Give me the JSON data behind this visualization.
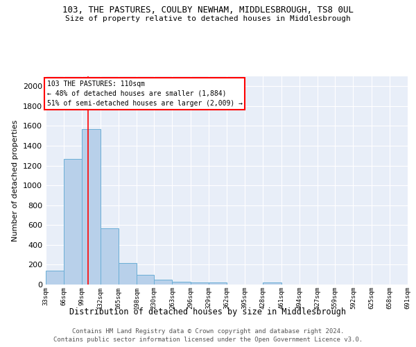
{
  "title": "103, THE PASTURES, COULBY NEWHAM, MIDDLESBROUGH, TS8 0UL",
  "subtitle": "Size of property relative to detached houses in Middlesbrough",
  "xlabel": "Distribution of detached houses by size in Middlesbrough",
  "ylabel": "Number of detached properties",
  "bar_color": "#b8d0ea",
  "bar_edge_color": "#6aaed6",
  "bg_color": "#e8eef8",
  "grid_color": "#ffffff",
  "red_line_x": 110,
  "annotation_title": "103 THE PASTURES: 110sqm",
  "annotation_line1": "← 48% of detached houses are smaller (1,884)",
  "annotation_line2": "51% of semi-detached houses are larger (2,009) →",
  "bin_edges": [
    33,
    66,
    99,
    132,
    165,
    198,
    230,
    263,
    296,
    329,
    362,
    395,
    428,
    461,
    494,
    527,
    559,
    592,
    625,
    658,
    691
  ],
  "bin_counts": [
    140,
    1265,
    1570,
    570,
    215,
    100,
    50,
    25,
    20,
    20,
    0,
    0,
    20,
    0,
    0,
    0,
    0,
    0,
    0,
    0
  ],
  "tick_labels": [
    "33sqm",
    "66sqm",
    "99sqm",
    "132sqm",
    "165sqm",
    "198sqm",
    "230sqm",
    "263sqm",
    "296sqm",
    "329sqm",
    "362sqm",
    "395sqm",
    "428sqm",
    "461sqm",
    "494sqm",
    "527sqm",
    "559sqm",
    "592sqm",
    "625sqm",
    "658sqm",
    "691sqm"
  ],
  "ylim": [
    0,
    2100
  ],
  "yticks": [
    0,
    200,
    400,
    600,
    800,
    1000,
    1200,
    1400,
    1600,
    1800,
    2000
  ],
  "footer1": "Contains HM Land Registry data © Crown copyright and database right 2024.",
  "footer2": "Contains public sector information licensed under the Open Government Licence v3.0."
}
